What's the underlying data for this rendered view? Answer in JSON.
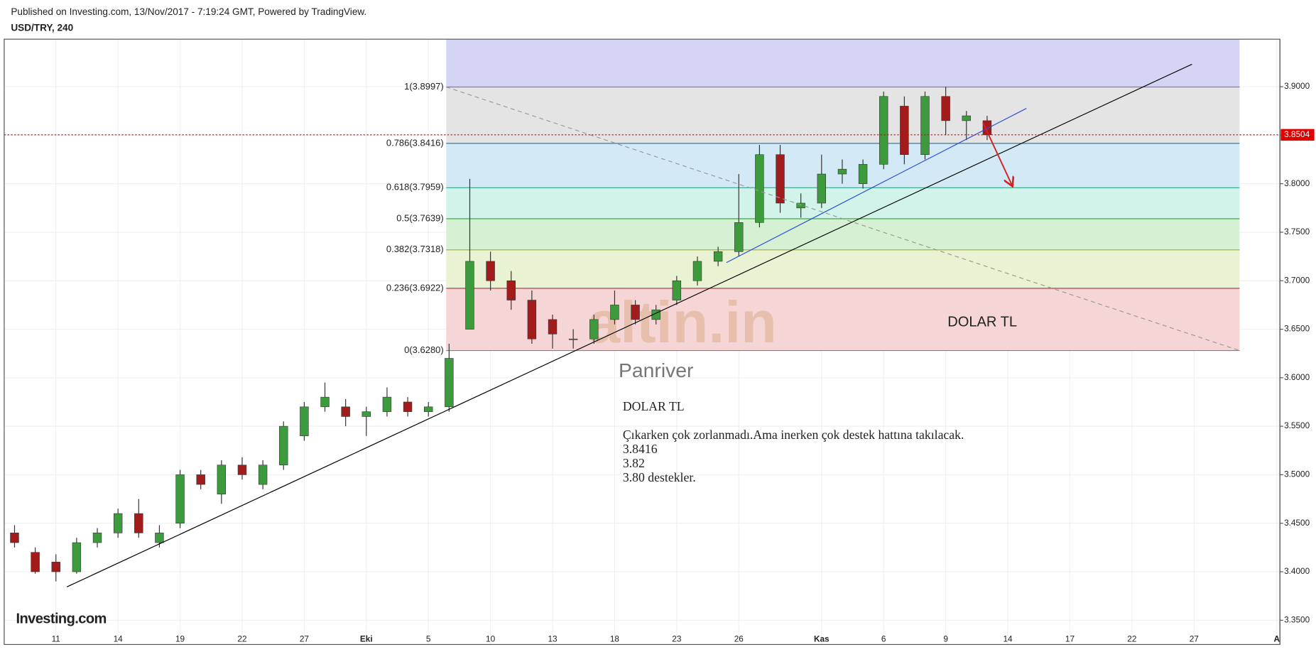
{
  "header": {
    "published": "Published on Investing.com, 13/Nov/2017 - 7:19:24 GMT, Powered by TradingView.",
    "symbol": "USD/TRY, 240"
  },
  "chart_data": {
    "type": "candlestick",
    "xlim": [
      -2.5,
      59.15
    ],
    "ylim": [
      3.325,
      3.949
    ],
    "xticks": [
      {
        "value": 0,
        "label": "11"
      },
      {
        "value": 3,
        "label": "14"
      },
      {
        "value": 6,
        "label": "19"
      },
      {
        "value": 9,
        "label": "22"
      },
      {
        "value": 12,
        "label": "27"
      },
      {
        "value": 15,
        "label": "Eki"
      },
      {
        "value": 18,
        "label": "5"
      },
      {
        "value": 21,
        "label": "10"
      },
      {
        "value": 24,
        "label": "13"
      },
      {
        "value": 27,
        "label": "18"
      },
      {
        "value": 30,
        "label": "23"
      },
      {
        "value": 33,
        "label": "26"
      },
      {
        "value": 37,
        "label": "Kas"
      },
      {
        "value": 40,
        "label": "6"
      },
      {
        "value": 43,
        "label": "9"
      },
      {
        "value": 46,
        "label": "14"
      },
      {
        "value": 49,
        "label": "17"
      },
      {
        "value": 52,
        "label": "22"
      },
      {
        "value": 55,
        "label": "27"
      },
      {
        "value": 59,
        "label": "A"
      }
    ],
    "yticks": [
      {
        "value": 3.35,
        "label": "3.3500"
      },
      {
        "value": 3.4,
        "label": "3.4000"
      },
      {
        "value": 3.45,
        "label": "3.4500"
      },
      {
        "value": 3.5,
        "label": "3.5000"
      },
      {
        "value": 3.55,
        "label": "3.5500"
      },
      {
        "value": 3.6,
        "label": "3.6000"
      },
      {
        "value": 3.65,
        "label": "3.6500"
      },
      {
        "value": 3.7,
        "label": "3.7000"
      },
      {
        "value": 3.75,
        "label": "3.7500"
      },
      {
        "value": 3.8,
        "label": "3.8000"
      },
      {
        "value": 3.85,
        "label": "3.8500"
      },
      {
        "value": 3.9,
        "label": "3.9000"
      }
    ],
    "grid": true,
    "up_color": "#3d9b3d",
    "down_color": "#a31c1c",
    "candles": [
      {
        "x": -2,
        "open": 3.44,
        "high": 3.448,
        "low": 3.425,
        "close": 3.43
      },
      {
        "x": -1,
        "open": 3.42,
        "high": 3.425,
        "low": 3.398,
        "close": 3.4
      },
      {
        "x": 0,
        "open": 3.41,
        "high": 3.418,
        "low": 3.39,
        "close": 3.4
      },
      {
        "x": 1,
        "open": 3.4,
        "high": 3.435,
        "low": 3.398,
        "close": 3.43
      },
      {
        "x": 2,
        "open": 3.43,
        "high": 3.445,
        "low": 3.425,
        "close": 3.44
      },
      {
        "x": 3,
        "open": 3.44,
        "high": 3.465,
        "low": 3.435,
        "close": 3.46
      },
      {
        "x": 4,
        "open": 3.46,
        "high": 3.475,
        "low": 3.435,
        "close": 3.44
      },
      {
        "x": 5,
        "open": 3.43,
        "high": 3.448,
        "low": 3.425,
        "close": 3.44
      },
      {
        "x": 6,
        "open": 3.45,
        "high": 3.505,
        "low": 3.445,
        "close": 3.5
      },
      {
        "x": 7,
        "open": 3.5,
        "high": 3.505,
        "low": 3.485,
        "close": 3.49
      },
      {
        "x": 8,
        "open": 3.48,
        "high": 3.515,
        "low": 3.47,
        "close": 3.51
      },
      {
        "x": 9,
        "open": 3.51,
        "high": 3.518,
        "low": 3.495,
        "close": 3.5
      },
      {
        "x": 10,
        "open": 3.49,
        "high": 3.515,
        "low": 3.485,
        "close": 3.51
      },
      {
        "x": 11,
        "open": 3.51,
        "high": 3.555,
        "low": 3.505,
        "close": 3.55
      },
      {
        "x": 12,
        "open": 3.54,
        "high": 3.575,
        "low": 3.535,
        "close": 3.57
      },
      {
        "x": 13,
        "open": 3.57,
        "high": 3.595,
        "low": 3.565,
        "close": 3.58
      },
      {
        "x": 14,
        "open": 3.57,
        "high": 3.578,
        "low": 3.55,
        "close": 3.56
      },
      {
        "x": 15,
        "open": 3.56,
        "high": 3.57,
        "low": 3.54,
        "close": 3.565
      },
      {
        "x": 16,
        "open": 3.565,
        "high": 3.59,
        "low": 3.56,
        "close": 3.58
      },
      {
        "x": 17,
        "open": 3.575,
        "high": 3.58,
        "low": 3.56,
        "close": 3.565
      },
      {
        "x": 18,
        "open": 3.565,
        "high": 3.575,
        "low": 3.56,
        "close": 3.57
      },
      {
        "x": 19,
        "open": 3.57,
        "high": 3.635,
        "low": 3.565,
        "close": 3.62
      },
      {
        "x": 20,
        "open": 3.65,
        "high": 3.805,
        "low": 3.65,
        "close": 3.72
      },
      {
        "x": 21,
        "open": 3.72,
        "high": 3.73,
        "low": 3.69,
        "close": 3.7
      },
      {
        "x": 22,
        "open": 3.7,
        "high": 3.71,
        "low": 3.67,
        "close": 3.68
      },
      {
        "x": 23,
        "open": 3.68,
        "high": 3.69,
        "low": 3.635,
        "close": 3.64
      },
      {
        "x": 24,
        "open": 3.66,
        "high": 3.665,
        "low": 3.63,
        "close": 3.645
      },
      {
        "x": 25,
        "open": 3.64,
        "high": 3.65,
        "low": 3.63,
        "close": 3.64
      },
      {
        "x": 26,
        "open": 3.64,
        "high": 3.665,
        "low": 3.635,
        "close": 3.66
      },
      {
        "x": 27,
        "open": 3.66,
        "high": 3.69,
        "low": 3.655,
        "close": 3.675
      },
      {
        "x": 28,
        "open": 3.675,
        "high": 3.68,
        "low": 3.655,
        "close": 3.66
      },
      {
        "x": 29,
        "open": 3.66,
        "high": 3.675,
        "low": 3.655,
        "close": 3.67
      },
      {
        "x": 30,
        "open": 3.68,
        "high": 3.705,
        "low": 3.675,
        "close": 3.7
      },
      {
        "x": 31,
        "open": 3.7,
        "high": 3.725,
        "low": 3.695,
        "close": 3.72
      },
      {
        "x": 32,
        "open": 3.72,
        "high": 3.735,
        "low": 3.715,
        "close": 3.73
      },
      {
        "x": 33,
        "open": 3.73,
        "high": 3.81,
        "low": 3.725,
        "close": 3.76
      },
      {
        "x": 34,
        "open": 3.76,
        "high": 3.84,
        "low": 3.755,
        "close": 3.83
      },
      {
        "x": 35,
        "open": 3.83,
        "high": 3.84,
        "low": 3.77,
        "close": 3.78
      },
      {
        "x": 36,
        "open": 3.775,
        "high": 3.79,
        "low": 3.765,
        "close": 3.78
      },
      {
        "x": 37,
        "open": 3.78,
        "high": 3.83,
        "low": 3.775,
        "close": 3.81
      },
      {
        "x": 38,
        "open": 3.81,
        "high": 3.825,
        "low": 3.8,
        "close": 3.815
      },
      {
        "x": 39,
        "open": 3.8,
        "high": 3.825,
        "low": 3.795,
        "close": 3.82
      },
      {
        "x": 40,
        "open": 3.82,
        "high": 3.895,
        "low": 3.815,
        "close": 3.89
      },
      {
        "x": 41,
        "open": 3.88,
        "high": 3.89,
        "low": 3.82,
        "close": 3.83
      },
      {
        "x": 42,
        "open": 3.83,
        "high": 3.895,
        "low": 3.825,
        "close": 3.89
      },
      {
        "x": 43,
        "open": 3.89,
        "high": 3.9,
        "low": 3.85,
        "close": 3.865
      },
      {
        "x": 44,
        "open": 3.865,
        "high": 3.875,
        "low": 3.845,
        "close": 3.87
      },
      {
        "x": 45,
        "open": 3.865,
        "high": 3.87,
        "low": 3.845,
        "close": 3.8504
      }
    ],
    "last_price": {
      "value": 3.8504,
      "label": "3.8504",
      "color": "#e00000"
    },
    "fibonacci": {
      "x": [
        18.86,
        57.2
      ],
      "top_fill": "#d4d4f5",
      "levels": [
        {
          "value": 3.8997,
          "label": "1(3.8997)",
          "color": "#8a7a99",
          "fill": "#e4e4e4"
        },
        {
          "value": 3.8416,
          "label": "0.786(3.8416)",
          "color": "#3d7a99",
          "fill": "#d3e9f5"
        },
        {
          "value": 3.7959,
          "label": "0.618(3.7959)",
          "color": "#33a88c",
          "fill": "#d2f3ea"
        },
        {
          "value": 3.7639,
          "label": "0.5(3.7639)",
          "color": "#42a842",
          "fill": "#d6f0d3"
        },
        {
          "value": 3.7318,
          "label": "0.382(3.7318)",
          "color": "#9cb02f",
          "fill": "#e9f3d3"
        },
        {
          "value": 3.6922,
          "label": "0.236(3.6922)",
          "color": "#a83232",
          "fill": "#f5d5d5"
        },
        {
          "value": 3.628,
          "label": "0(3.6280)",
          "color": "#8a7a99"
        }
      ]
    },
    "drawings": [
      {
        "x": [
          0.53,
          54.9
        ],
        "y": [
          3.3844,
          3.9232
        ],
        "color": "#000000"
      },
      {
        "x": [
          32.4,
          46.9
        ],
        "y": [
          3.7187,
          3.8777
        ],
        "color": "#2a4fd6"
      },
      {
        "x": [
          18.86,
          57.2
        ],
        "y": [
          3.8997,
          3.628
        ],
        "color": "#999999",
        "dashed": true
      },
      {
        "x": [
          44.8,
          46.2
        ],
        "y": [
          3.863,
          3.7986
        ],
        "color": "#d42020",
        "arrow": true
      }
    ],
    "annotation": "DOLAR TL",
    "watermark": "altin.in",
    "watermark_author": "Panriver",
    "note": [
      "DOLAR TL",
      "Çıkarken çok zorlanmadı.Ama inerken çok destek hattına takılacak.",
      "3.8416",
      "3.82",
      "3.80  destekler."
    ],
    "logo": "Investing.com"
  }
}
